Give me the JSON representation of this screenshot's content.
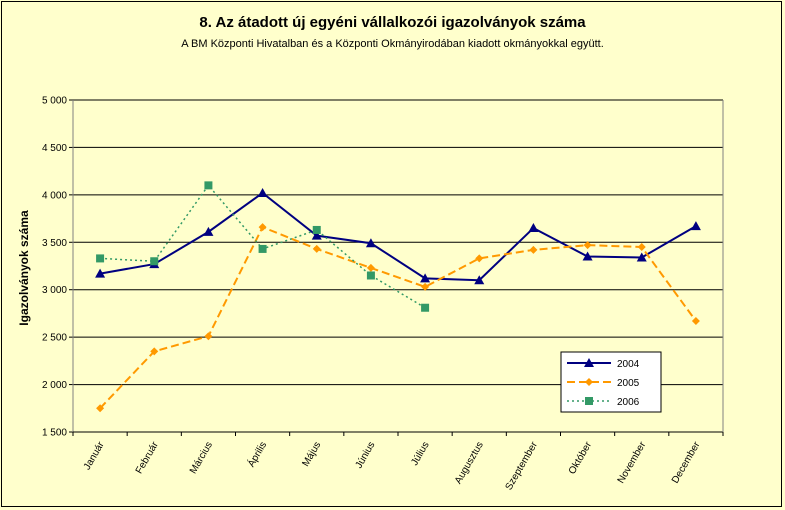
{
  "chart_data": {
    "type": "line",
    "title": "8. Az átadott új egyéni vállalkozói  igazolványok száma",
    "subtitle": "A BM Központi Hivatalban és a Központi Okmányirodában kiadott okmányokkal együtt.",
    "ylabel": "Igazolványok száma",
    "xlabel": "",
    "ylim": [
      1500,
      5000
    ],
    "ytick_step": 500,
    "ytick_labels": [
      "1 500",
      "2 000",
      "2 500",
      "3 000",
      "3 500",
      "4 000",
      "4 500",
      "5 000"
    ],
    "grid": true,
    "legend_position": "bottom-right",
    "categories": [
      "Január",
      "Február",
      "Március",
      "Április",
      "Május",
      "Június",
      "Július",
      "Augusztus",
      "Szeptember",
      "Október",
      "November",
      "December"
    ],
    "series": [
      {
        "name": "2004",
        "color": "#000080",
        "marker": "triangle",
        "dash": "solid",
        "values": [
          3170,
          3270,
          3610,
          4020,
          3570,
          3490,
          3120,
          3100,
          3650,
          3350,
          3340,
          3670
        ]
      },
      {
        "name": "2005",
        "color": "#ff9900",
        "marker": "diamond",
        "dash": "dashed",
        "values": [
          1750,
          2350,
          2510,
          3660,
          3430,
          3230,
          3030,
          3330,
          3420,
          3470,
          3450,
          2670
        ]
      },
      {
        "name": "2006",
        "color": "#339966",
        "marker": "square",
        "dash": "dotted",
        "values": [
          3330,
          3300,
          4100,
          3430,
          3630,
          3150,
          2810,
          null,
          null,
          null,
          null,
          null
        ]
      }
    ]
  }
}
